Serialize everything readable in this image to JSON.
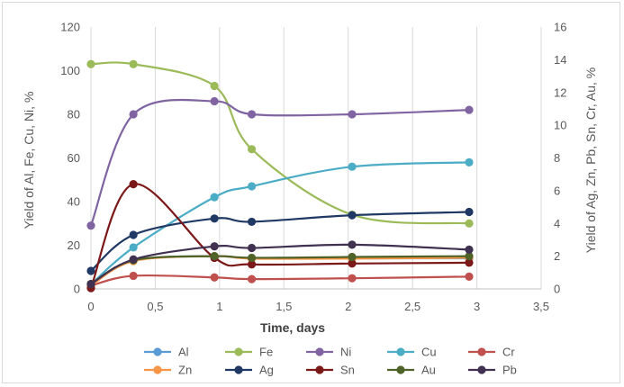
{
  "chart_data": {
    "type": "line",
    "title": "",
    "xlabel": "Time, days",
    "ylabel_left": "Yield of Al, Fe, Cu, Ni, %",
    "ylabel_right": "Yield of Ag, Zn, Pb, Sn, Cr, Au, %",
    "xlim": [
      0,
      3.5
    ],
    "ylim_left": [
      0,
      120
    ],
    "ylim_right": [
      0,
      16
    ],
    "x_ticks": [
      "0",
      "0,5",
      "1",
      "1,5",
      "2",
      "2,5",
      "3",
      "3,5"
    ],
    "y_left_ticks": [
      "0",
      "20",
      "40",
      "60",
      "80",
      "100",
      "120"
    ],
    "y_right_ticks": [
      "0",
      "2",
      "4",
      "6",
      "8",
      "10",
      "12",
      "14",
      "16"
    ],
    "grid": "vertical",
    "legend_position": "bottom",
    "series": [
      {
        "name": "Al",
        "axis": "left",
        "color": "#5b9bd5",
        "x": [
          0,
          0.33,
          0.96,
          1.25,
          2.03,
          2.94
        ],
        "y": [
          2,
          13,
          15,
          14,
          14,
          14
        ]
      },
      {
        "name": "Fe",
        "axis": "left",
        "color": "#9bbb59",
        "x": [
          0,
          0.33,
          0.96,
          1.25,
          2.03,
          2.94
        ],
        "y": [
          103,
          103,
          93,
          64,
          34,
          30
        ]
      },
      {
        "name": "Ni",
        "axis": "left",
        "color": "#8064a2",
        "x": [
          0,
          0.33,
          0.96,
          1.25,
          2.03,
          2.94
        ],
        "y": [
          29,
          80,
          86,
          80,
          80,
          82
        ]
      },
      {
        "name": "Cu",
        "axis": "left",
        "color": "#4bacc6",
        "x": [
          0,
          0.33,
          0.96,
          1.25,
          2.03,
          2.94
        ],
        "y": [
          2,
          19,
          42,
          47,
          56,
          58
        ]
      },
      {
        "name": "Cr",
        "axis": "right",
        "color": "#c0504d",
        "x": [
          0,
          0.33,
          0.96,
          1.25,
          2.03,
          2.94
        ],
        "y": [
          0.2,
          0.8,
          0.7,
          0.6,
          0.65,
          0.75
        ]
      },
      {
        "name": "Zn",
        "axis": "right",
        "color": "#f79646",
        "x": [
          0,
          0.33,
          0.96,
          1.25,
          2.03,
          2.94
        ],
        "y": [
          0.2,
          1.7,
          2.0,
          1.85,
          1.85,
          1.9
        ]
      },
      {
        "name": "Ag",
        "axis": "right",
        "color": "#1f3864",
        "x": [
          0,
          0.33,
          0.96,
          1.25,
          2.03,
          2.94
        ],
        "y": [
          1.1,
          3.3,
          4.3,
          4.1,
          4.5,
          4.7
        ]
      },
      {
        "name": "Sn",
        "axis": "right",
        "color": "#7b1818",
        "x": [
          0,
          0.33,
          0.96,
          1.25,
          2.03,
          2.94
        ],
        "y": [
          0.05,
          6.4,
          1.9,
          1.5,
          1.55,
          1.6
        ]
      },
      {
        "name": "Au",
        "axis": "right",
        "color": "#4f6228",
        "x": [
          0,
          0.33,
          0.96,
          1.25,
          2.03,
          2.94
        ],
        "y": [
          0.3,
          1.75,
          2.0,
          1.9,
          1.95,
          2.0
        ]
      },
      {
        "name": "Pb",
        "axis": "right",
        "color": "#403151",
        "x": [
          0,
          0.33,
          0.96,
          1.25,
          2.03,
          2.94
        ],
        "y": [
          0.3,
          1.8,
          2.6,
          2.5,
          2.7,
          2.4
        ]
      }
    ]
  }
}
